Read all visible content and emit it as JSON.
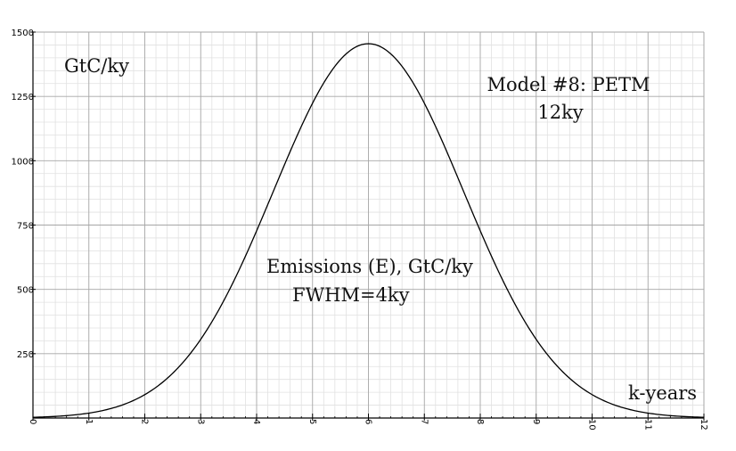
{
  "chart_data": {
    "type": "line",
    "ylabel": "GtC/ky",
    "xlabel": "k-years",
    "title_lines": [
      "Model #8: PETM",
      "12ky"
    ],
    "series_label_lines": [
      "Emissions (E), GtC/ky",
      "FWHM=4ky"
    ],
    "xlim": [
      0,
      12
    ],
    "ylim": [
      0,
      1500
    ],
    "x_ticks": [
      0,
      1,
      2,
      3,
      4,
      5,
      6,
      7,
      8,
      9,
      10,
      11,
      12
    ],
    "y_ticks": [
      250,
      500,
      750,
      1000,
      1250,
      1500
    ],
    "grid": true,
    "series": [
      {
        "peak_x": 6,
        "peak_y": 1455,
        "fwhm": 4,
        "x": [
          0,
          0.5,
          1,
          1.5,
          2,
          2.5,
          3,
          3.5,
          4,
          4.5,
          5,
          5.5,
          6,
          6.5,
          7,
          7.5,
          8,
          8.5,
          9,
          9.5,
          10,
          10.5,
          11,
          11.5,
          12
        ],
        "y": [
          5,
          15,
          31,
          57,
          91,
          177,
          312,
          496,
          727,
          981,
          1212,
          1381,
          1455,
          1381,
          1212,
          981,
          727,
          496,
          312,
          177,
          91,
          57,
          31,
          15,
          5
        ]
      }
    ]
  },
  "colors": {
    "line": "#000000",
    "grid_major": "#a6a6a6",
    "grid_minor": "#e1e1e1",
    "axis": "#000000"
  }
}
